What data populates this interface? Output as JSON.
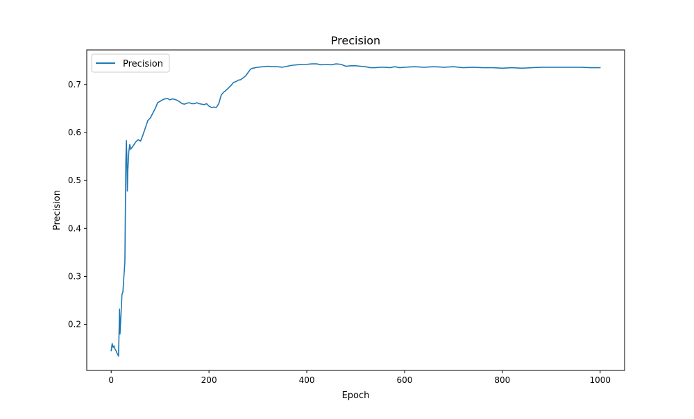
{
  "chart_data": {
    "type": "line",
    "title": "Precision",
    "xlabel": "Epoch",
    "ylabel": "Precision",
    "xlim": [
      -50,
      1050
    ],
    "ylim": [
      0.104,
      0.772
    ],
    "xticks": [
      0,
      200,
      400,
      600,
      800,
      1000
    ],
    "yticks": [
      0.2,
      0.3,
      0.4,
      0.5,
      0.6,
      0.7
    ],
    "xtick_labels": [
      "0",
      "200",
      "400",
      "600",
      "800",
      "1000"
    ],
    "ytick_labels": [
      "0.2",
      "0.3",
      "0.4",
      "0.5",
      "0.6",
      "0.7"
    ],
    "grid": false,
    "legend": {
      "position": "upper-left",
      "entries": [
        "Precision"
      ]
    },
    "series": [
      {
        "name": "Precision",
        "color": "#1f77b4",
        "x": [
          0,
          2,
          4,
          6,
          8,
          10,
          12,
          14,
          15,
          16,
          17,
          18,
          19,
          20,
          22,
          24,
          26,
          28,
          29,
          30,
          31,
          32,
          33,
          34,
          36,
          38,
          40,
          42,
          45,
          50,
          55,
          60,
          65,
          70,
          75,
          80,
          85,
          90,
          95,
          100,
          105,
          110,
          115,
          120,
          125,
          130,
          135,
          140,
          145,
          150,
          155,
          160,
          165,
          170,
          175,
          180,
          185,
          190,
          195,
          200,
          205,
          210,
          215,
          220,
          225,
          230,
          235,
          240,
          245,
          250,
          255,
          260,
          265,
          270,
          275,
          280,
          285,
          290,
          295,
          300,
          310,
          320,
          330,
          340,
          350,
          360,
          370,
          380,
          390,
          400,
          410,
          420,
          430,
          440,
          450,
          460,
          470,
          480,
          490,
          500,
          510,
          520,
          530,
          540,
          550,
          560,
          570,
          580,
          590,
          600,
          620,
          640,
          660,
          680,
          700,
          720,
          740,
          760,
          780,
          800,
          820,
          840,
          860,
          880,
          900,
          920,
          940,
          960,
          980,
          1000
        ],
        "y": [
          0.145,
          0.16,
          0.152,
          0.155,
          0.148,
          0.145,
          0.14,
          0.136,
          0.134,
          0.18,
          0.232,
          0.18,
          0.2,
          0.22,
          0.262,
          0.268,
          0.3,
          0.33,
          0.44,
          0.54,
          0.583,
          0.548,
          0.478,
          0.52,
          0.56,
          0.575,
          0.565,
          0.568,
          0.572,
          0.58,
          0.585,
          0.582,
          0.595,
          0.61,
          0.625,
          0.63,
          0.64,
          0.65,
          0.662,
          0.665,
          0.668,
          0.67,
          0.671,
          0.668,
          0.67,
          0.669,
          0.667,
          0.664,
          0.66,
          0.659,
          0.661,
          0.662,
          0.66,
          0.66,
          0.662,
          0.66,
          0.659,
          0.658,
          0.66,
          0.655,
          0.652,
          0.653,
          0.652,
          0.66,
          0.678,
          0.684,
          0.688,
          0.693,
          0.698,
          0.704,
          0.706,
          0.709,
          0.71,
          0.714,
          0.718,
          0.725,
          0.732,
          0.734,
          0.735,
          0.736,
          0.737,
          0.738,
          0.737,
          0.737,
          0.736,
          0.738,
          0.74,
          0.741,
          0.742,
          0.742,
          0.743,
          0.743,
          0.741,
          0.742,
          0.741,
          0.743,
          0.742,
          0.738,
          0.739,
          0.739,
          0.738,
          0.737,
          0.735,
          0.735,
          0.736,
          0.736,
          0.735,
          0.737,
          0.735,
          0.736,
          0.737,
          0.736,
          0.737,
          0.736,
          0.737,
          0.735,
          0.736,
          0.735,
          0.735,
          0.734,
          0.735,
          0.734,
          0.735,
          0.736,
          0.736,
          0.736,
          0.736,
          0.736,
          0.735,
          0.735
        ]
      }
    ]
  }
}
